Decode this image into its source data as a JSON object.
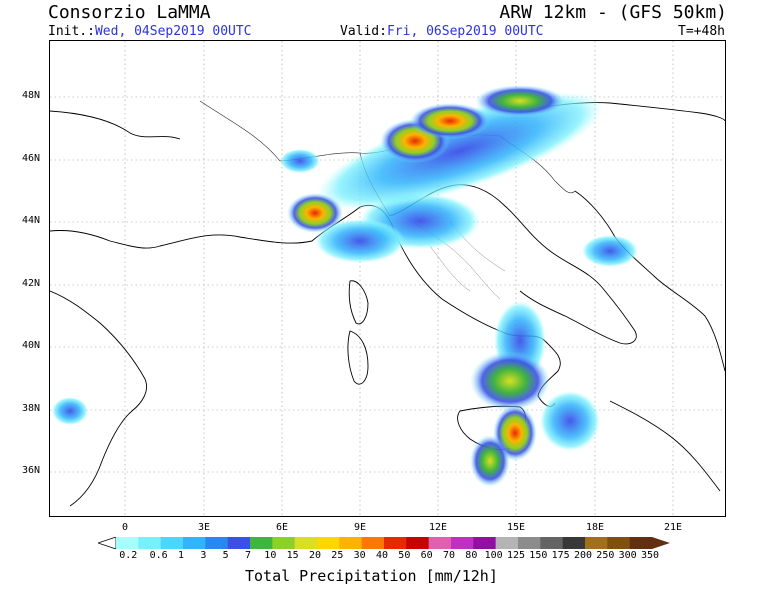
{
  "header": {
    "source": "Consorzio LaMMA",
    "model": "ARW 12km - (GFS 50km)",
    "init_label": "Init.:",
    "init_value": "Wed, 04Sep2019 00UTC",
    "valid_label": "Valid:",
    "valid_value": "Fri, 06Sep2019 00UTC",
    "forecast_step": "T=+48h"
  },
  "map": {
    "lat_labels": [
      "48N",
      "46N",
      "44N",
      "42N",
      "40N",
      "38N",
      "36N"
    ],
    "lon_labels": [
      "0",
      "3E",
      "6E",
      "9E",
      "12E",
      "15E",
      "18E",
      "21E"
    ],
    "land_color": "#ffffff",
    "grid_color": "#999999"
  },
  "colorbar": {
    "title": "Total Precipitation [mm/12h]",
    "labels": [
      "0.2",
      "0.6",
      "1",
      "3",
      "5",
      "7",
      "10",
      "15",
      "20",
      "25",
      "30",
      "40",
      "50",
      "60",
      "70",
      "80",
      "100",
      "125",
      "150",
      "175",
      "200",
      "250",
      "300",
      "350"
    ],
    "colors": [
      "#a8fcfc",
      "#78f0fc",
      "#48d8fc",
      "#30b4fc",
      "#2888f0",
      "#3c50e8",
      "#40b440",
      "#8cd028",
      "#d8e020",
      "#fcd800",
      "#fcb400",
      "#fc7800",
      "#e82800",
      "#c80000",
      "#e060b0",
      "#c030c0",
      "#9010a0",
      "#b4b4b4",
      "#8c8c8c",
      "#646464",
      "#383838",
      "#a07020",
      "#805010",
      "#603010"
    ]
  },
  "precipitation": {
    "blue_hex": "#3c50e8",
    "yellow_hex": "#fcd800",
    "red_hex": "#e82800",
    "cells": [
      {
        "region": "Western Alps / Liguria",
        "level": 4
      },
      {
        "region": "Central Alps",
        "level": 5
      },
      {
        "region": "Eastern Alps / Austria",
        "level": 4
      },
      {
        "region": "Gulf of Genoa",
        "level": 5
      },
      {
        "region": "Calabria",
        "level": 3
      },
      {
        "region": "Tyrrhenian Sea (south)",
        "level": 4
      },
      {
        "region": "Eastern Sicily",
        "level": 5
      },
      {
        "region": "South-east Sicily",
        "level": 3
      }
    ]
  }
}
